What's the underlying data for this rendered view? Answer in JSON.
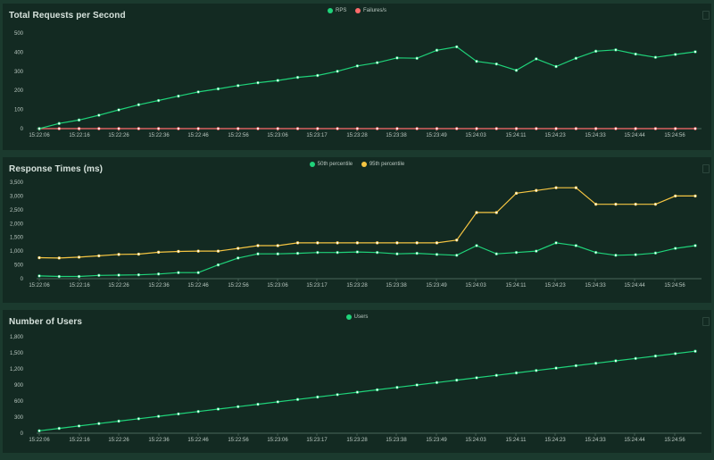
{
  "time_labels": [
    "15:22:06",
    "15:22:16",
    "15:22:26",
    "15:22:36",
    "15:22:46",
    "15:22:56",
    "15:23:06",
    "15:23:17",
    "15:23:28",
    "15:23:38",
    "15:23:49",
    "15:24:03",
    "15:24:11",
    "15:24:23",
    "15:24:33",
    "15:24:44",
    "15:24:56"
  ],
  "colors": {
    "panel_bg": "#132a22",
    "page_bg": "#1b3a2e",
    "axis": "#5e7a6e",
    "green": "#1fd37a",
    "red": "#ff6b6b",
    "yellow": "#f5c542"
  },
  "chart_data": [
    {
      "type": "line",
      "title": "Total Requests per Second",
      "xlabel": "",
      "ylabel": "",
      "ylim": [
        0,
        500
      ],
      "yticks": [
        "0",
        "100",
        "200",
        "300",
        "400",
        "500"
      ],
      "ytick_values": [
        0,
        100,
        200,
        300,
        400,
        500
      ],
      "series": [
        {
          "name": "RPS",
          "color": "#1fd37a",
          "values": [
            0,
            27,
            45,
            70,
            98,
            125,
            147,
            170,
            192,
            208,
            225,
            240,
            252,
            268,
            278,
            300,
            328,
            345,
            370,
            368,
            410,
            428,
            352,
            338,
            305,
            365,
            325,
            368,
            405,
            412,
            390,
            373,
            388,
            402
          ]
        },
        {
          "name": "Failures/s",
          "color": "#ff6b6b",
          "values": [
            0,
            0,
            0,
            0,
            0,
            0,
            0,
            0,
            0,
            0,
            0,
            0,
            0,
            0,
            0,
            0,
            0,
            0,
            0,
            0,
            0,
            0,
            0,
            0,
            0,
            0,
            0,
            0,
            0,
            0,
            0,
            0,
            0,
            0
          ]
        }
      ]
    },
    {
      "type": "line",
      "title": "Response Times (ms)",
      "xlabel": "",
      "ylabel": "",
      "ylim": [
        0,
        3500
      ],
      "yticks": [
        "0",
        "500",
        "1,000",
        "1,500",
        "2,000",
        "2,500",
        "3,000",
        "3,500"
      ],
      "ytick_values": [
        0,
        500,
        1000,
        1500,
        2000,
        2500,
        3000,
        3500
      ],
      "series": [
        {
          "name": "50th percentile",
          "color": "#1fd37a",
          "values": [
            100,
            80,
            80,
            120,
            130,
            140,
            170,
            220,
            220,
            500,
            750,
            900,
            900,
            920,
            950,
            950,
            970,
            950,
            900,
            920,
            880,
            850,
            1200,
            900,
            950,
            1000,
            1300,
            1200,
            950,
            850,
            870,
            930,
            1100,
            1200
          ]
        },
        {
          "name": "95th percentile",
          "color": "#f5c542",
          "values": [
            760,
            750,
            780,
            830,
            880,
            890,
            960,
            990,
            1000,
            1000,
            1100,
            1200,
            1200,
            1300,
            1300,
            1300,
            1300,
            1300,
            1300,
            1300,
            1300,
            1400,
            2400,
            2400,
            3100,
            3200,
            3300,
            3300,
            2700,
            2700,
            2700,
            2700,
            3000,
            3000
          ]
        }
      ]
    },
    {
      "type": "line",
      "title": "Number of Users",
      "xlabel": "",
      "ylabel": "",
      "ylim": [
        0,
        1800
      ],
      "yticks": [
        "0",
        "300",
        "600",
        "900",
        "1,200",
        "1,500",
        "1,800"
      ],
      "ytick_values": [
        0,
        300,
        600,
        900,
        1200,
        1500,
        1800
      ],
      "series": [
        {
          "name": "Users",
          "color": "#1fd37a",
          "values": [
            45,
            90,
            135,
            180,
            225,
            270,
            315,
            360,
            405,
            450,
            495,
            540,
            585,
            630,
            675,
            720,
            765,
            810,
            855,
            900,
            945,
            990,
            1035,
            1080,
            1125,
            1170,
            1215,
            1260,
            1305,
            1350,
            1395,
            1440,
            1485,
            1530
          ]
        }
      ]
    }
  ]
}
